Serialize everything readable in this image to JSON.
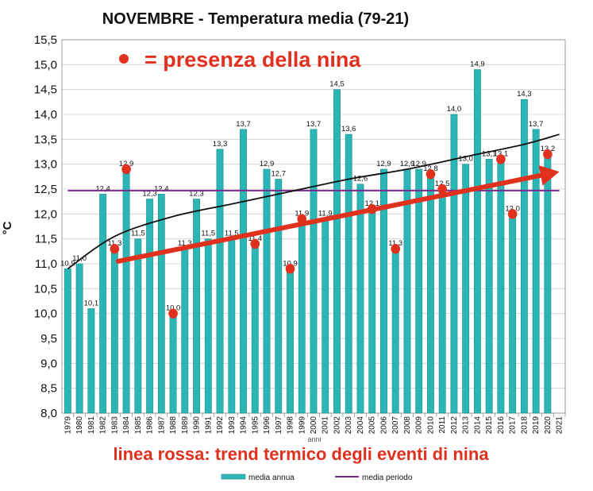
{
  "chart_data": {
    "type": "bar",
    "title": "NOVEMBRE - Temperatura media (79-21)",
    "ylabel": "°C",
    "xlabel": "anni",
    "ylim": [
      8.0,
      15.5
    ],
    "yticks": [
      "8,0",
      "8,5",
      "9,0",
      "9,5",
      "10,0",
      "10,5",
      "11,0",
      "11,5",
      "12,0",
      "12,5",
      "13,0",
      "13,5",
      "14,0",
      "14,5",
      "15,0",
      "15,5"
    ],
    "categories": [
      "1979",
      "1980",
      "1981",
      "1982",
      "1983",
      "1984",
      "1985",
      "1986",
      "1987",
      "1988",
      "1989",
      "1990",
      "1991",
      "1992",
      "1993",
      "1994",
      "1995",
      "1996",
      "1997",
      "1998",
      "1999",
      "2000",
      "2001",
      "2002",
      "2003",
      "2004",
      "2005",
      "2006",
      "2007",
      "2008",
      "2009",
      "2010",
      "2011",
      "2012",
      "2013",
      "2014",
      "2015",
      "2016",
      "2017",
      "2018",
      "2019",
      "2020",
      "2021"
    ],
    "values": [
      10.9,
      11.0,
      10.1,
      12.4,
      11.3,
      12.9,
      11.5,
      12.3,
      12.4,
      10.0,
      11.3,
      12.3,
      11.5,
      13.3,
      11.5,
      13.7,
      11.4,
      12.9,
      12.7,
      10.9,
      11.9,
      13.7,
      11.9,
      14.5,
      13.6,
      12.6,
      12.1,
      12.9,
      11.3,
      12.9,
      12.9,
      12.8,
      12.5,
      14.0,
      13.0,
      14.9,
      13.1,
      13.1,
      12.0,
      14.3,
      13.7,
      13.2,
      null
    ],
    "labels": [
      "10,9",
      "11,0",
      "10,1",
      "12,4",
      "11,3",
      "12,9",
      "11,5",
      "12,3",
      "12,4",
      "10,0",
      "11,3",
      "12,3",
      "11,5",
      "13,3",
      "11,5",
      "13,7",
      "11,4",
      "12,9",
      "12,7",
      "10,9",
      "11,9",
      "13,7",
      "11,9",
      "14,5",
      "13,6",
      "12,6",
      "12,1",
      "12,9",
      "11,3",
      "12,9",
      "12,9",
      "12,8",
      "12,5",
      "14,0",
      "13,0",
      "14,9",
      "13,1",
      "13,1",
      "12,0",
      "14,3",
      "13,7",
      "13,2",
      ""
    ],
    "nina_years": [
      "1983",
      "1984",
      "1988",
      "1995",
      "1998",
      "1999",
      "2005",
      "2007",
      "2010",
      "2011",
      "2016",
      "2017",
      "2020"
    ],
    "media_periodo": 12.47,
    "trend_curve": [
      [
        1979,
        10.9
      ],
      [
        1983,
        11.55
      ],
      [
        1988,
        11.95
      ],
      [
        1993,
        12.2
      ],
      [
        1998,
        12.45
      ],
      [
        2003,
        12.7
      ],
      [
        2008,
        12.9
      ],
      [
        2013,
        13.15
      ],
      [
        2018,
        13.4
      ],
      [
        2021,
        13.6
      ]
    ],
    "nina_trend": {
      "start": [
        1983.3,
        11.05
      ],
      "end": [
        2021,
        12.85
      ]
    },
    "legend": [
      {
        "name": "media annua",
        "color": "#2cb5b5"
      },
      {
        "name": "media periodo",
        "color": "#7b2c8f"
      }
    ],
    "legend_position": "bottom"
  },
  "annotations": {
    "nina_key": "= presenza della nina",
    "trend_caption": "linea rossa: trend termico degli eventi di nina"
  },
  "colors": {
    "bar": "#2cb5b5",
    "bar_stroke": "#1e8f8f",
    "media_line": "#7b2c8f",
    "trend_curve": "#111111",
    "nina": "#e0301e"
  }
}
